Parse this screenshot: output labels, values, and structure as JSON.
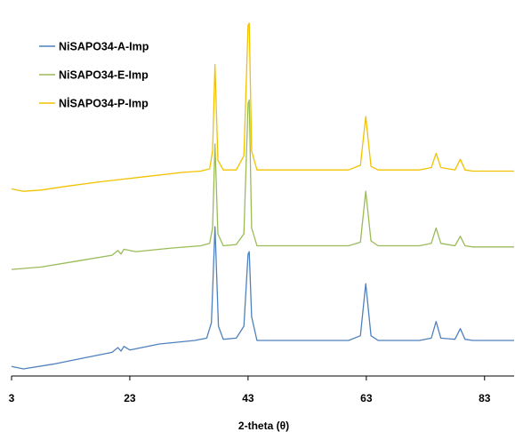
{
  "chart_data": {
    "type": "line",
    "title": "",
    "xlabel": "2-theta (θ)",
    "ylabel": "",
    "xlim": [
      3,
      88
    ],
    "ylim": [
      0,
      3.1
    ],
    "x_ticks": [
      3,
      23,
      43,
      63,
      83
    ],
    "grid": false,
    "legend_position": "top-left",
    "series": [
      {
        "name": "NiSAPO34-A-Imp",
        "color": "#4f81bd",
        "points": [
          [
            3,
            0.08
          ],
          [
            5,
            0.06
          ],
          [
            10,
            0.1
          ],
          [
            15,
            0.15
          ],
          [
            20,
            0.2
          ],
          [
            21,
            0.24
          ],
          [
            21.5,
            0.21
          ],
          [
            22,
            0.25
          ],
          [
            23,
            0.22
          ],
          [
            28,
            0.27
          ],
          [
            34,
            0.3
          ],
          [
            36,
            0.32
          ],
          [
            36.8,
            0.45
          ],
          [
            37.4,
            1.26
          ],
          [
            38,
            0.42
          ],
          [
            38.8,
            0.31
          ],
          [
            41,
            0.32
          ],
          [
            42.3,
            0.42
          ],
          [
            43,
            1.03
          ],
          [
            43.2,
            1.05
          ],
          [
            43.6,
            0.5
          ],
          [
            44.5,
            0.3
          ],
          [
            50,
            0.3
          ],
          [
            60,
            0.3
          ],
          [
            62,
            0.34
          ],
          [
            62.9,
            0.78
          ],
          [
            63.8,
            0.34
          ],
          [
            65,
            0.3
          ],
          [
            72,
            0.3
          ],
          [
            74,
            0.32
          ],
          [
            74.8,
            0.46
          ],
          [
            75.6,
            0.32
          ],
          [
            78,
            0.31
          ],
          [
            78.9,
            0.4
          ],
          [
            79.7,
            0.31
          ],
          [
            81,
            0.3
          ],
          [
            88,
            0.3
          ]
        ]
      },
      {
        "name": "NiSAPO34-E-Imp",
        "color": "#9bbb59",
        "points": [
          [
            3,
            0.9
          ],
          [
            8,
            0.92
          ],
          [
            14,
            0.97
          ],
          [
            20,
            1.02
          ],
          [
            21,
            1.06
          ],
          [
            21.5,
            1.03
          ],
          [
            22,
            1.07
          ],
          [
            24,
            1.05
          ],
          [
            30,
            1.08
          ],
          [
            35,
            1.1
          ],
          [
            36.5,
            1.12
          ],
          [
            37,
            1.25
          ],
          [
            37.4,
            1.96
          ],
          [
            37.9,
            1.2
          ],
          [
            38.8,
            1.1
          ],
          [
            41,
            1.11
          ],
          [
            42.3,
            1.2
          ],
          [
            43,
            2.3
          ],
          [
            43.2,
            2.33
          ],
          [
            43.6,
            1.25
          ],
          [
            44.5,
            1.1
          ],
          [
            50,
            1.1
          ],
          [
            60,
            1.1
          ],
          [
            62,
            1.13
          ],
          [
            62.9,
            1.56
          ],
          [
            63.8,
            1.14
          ],
          [
            65,
            1.1
          ],
          [
            72,
            1.1
          ],
          [
            74,
            1.12
          ],
          [
            74.8,
            1.25
          ],
          [
            75.6,
            1.12
          ],
          [
            78,
            1.1
          ],
          [
            78.9,
            1.18
          ],
          [
            79.7,
            1.1
          ],
          [
            81,
            1.09
          ],
          [
            88,
            1.09
          ]
        ]
      },
      {
        "name": "NİSAPO34-P-Imp",
        "color": "#f2c200",
        "points": [
          [
            3,
            1.58
          ],
          [
            5,
            1.56
          ],
          [
            8,
            1.57
          ],
          [
            12,
            1.6
          ],
          [
            18,
            1.64
          ],
          [
            25,
            1.68
          ],
          [
            32,
            1.72
          ],
          [
            35,
            1.73
          ],
          [
            36.5,
            1.75
          ],
          [
            37,
            1.9
          ],
          [
            37.4,
            2.63
          ],
          [
            37.9,
            1.82
          ],
          [
            38.8,
            1.74
          ],
          [
            41,
            1.74
          ],
          [
            42.3,
            1.86
          ],
          [
            43,
            2.96
          ],
          [
            43.2,
            2.98
          ],
          [
            43.6,
            1.9
          ],
          [
            44.5,
            1.74
          ],
          [
            50,
            1.74
          ],
          [
            60,
            1.74
          ],
          [
            62,
            1.78
          ],
          [
            62.9,
            2.19
          ],
          [
            63.8,
            1.77
          ],
          [
            65,
            1.74
          ],
          [
            72,
            1.74
          ],
          [
            74,
            1.76
          ],
          [
            74.8,
            1.88
          ],
          [
            75.6,
            1.76
          ],
          [
            78,
            1.74
          ],
          [
            78.9,
            1.83
          ],
          [
            79.7,
            1.74
          ],
          [
            81,
            1.73
          ],
          [
            88,
            1.73
          ]
        ]
      }
    ]
  }
}
